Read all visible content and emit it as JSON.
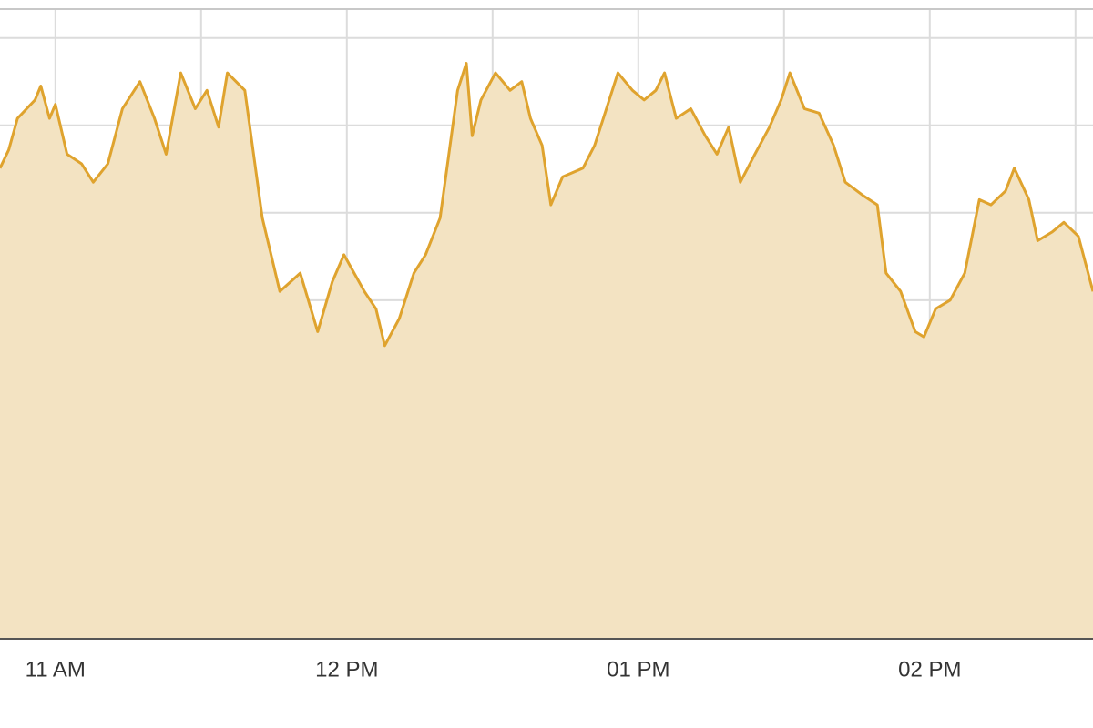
{
  "chart_data": {
    "type": "area",
    "x": [
      10.81,
      10.84,
      10.87,
      10.93,
      10.95,
      10.98,
      11.0,
      11.04,
      11.09,
      11.13,
      11.18,
      11.23,
      11.29,
      11.34,
      11.38,
      11.43,
      11.48,
      11.52,
      11.56,
      11.59,
      11.65,
      11.68,
      11.71,
      11.74,
      11.77,
      11.84,
      11.9,
      11.95,
      11.99,
      12.06,
      12.1,
      12.13,
      12.18,
      12.23,
      12.27,
      12.32,
      12.35,
      12.38,
      12.41,
      12.43,
      12.46,
      12.51,
      12.56,
      12.6,
      12.63,
      12.67,
      12.7,
      12.74,
      12.81,
      12.85,
      12.88,
      12.93,
      12.98,
      13.02,
      13.06,
      13.09,
      13.13,
      13.18,
      13.23,
      13.27,
      13.31,
      13.35,
      13.4,
      13.45,
      13.49,
      13.52,
      13.57,
      13.62,
      13.67,
      13.71,
      13.77,
      13.82,
      13.85,
      13.9,
      13.95,
      13.98,
      14.02,
      14.07,
      14.12,
      14.17,
      14.21,
      14.26,
      14.29,
      14.34,
      14.37,
      14.42,
      14.46,
      14.51,
      14.56
    ],
    "values": [
      5.51,
      5.72,
      6.08,
      6.29,
      6.45,
      6.08,
      6.24,
      5.67,
      5.56,
      5.35,
      5.56,
      6.19,
      6.5,
      6.08,
      5.67,
      6.6,
      6.19,
      6.4,
      5.98,
      6.6,
      6.4,
      5.67,
      4.94,
      4.52,
      4.1,
      4.31,
      3.64,
      4.21,
      4.52,
      4.1,
      3.9,
      3.48,
      3.79,
      4.31,
      4.52,
      4.94,
      5.67,
      6.4,
      6.71,
      5.88,
      6.29,
      6.6,
      6.4,
      6.5,
      6.08,
      5.77,
      5.09,
      5.41,
      5.51,
      5.77,
      6.08,
      6.6,
      6.4,
      6.29,
      6.4,
      6.6,
      6.08,
      6.19,
      5.88,
      5.67,
      5.98,
      5.35,
      5.67,
      5.98,
      6.29,
      6.6,
      6.19,
      6.14,
      5.77,
      5.35,
      5.2,
      5.09,
      4.31,
      4.1,
      3.64,
      3.58,
      3.9,
      4.0,
      4.31,
      5.15,
      5.09,
      5.25,
      5.51,
      5.15,
      4.68,
      4.78,
      4.89,
      4.73,
      4.1
    ],
    "color": "#dfa32e",
    "fill_color": "#f3e3c2",
    "xlim": [
      10.81,
      14.56
    ],
    "xticks": [
      {
        "value": 11,
        "label": "11 AM"
      },
      {
        "value": 12,
        "label": "12 PM"
      },
      {
        "value": 13,
        "label": "01 PM"
      },
      {
        "value": 14,
        "label": "02 PM"
      }
    ],
    "minor_xticks": [
      11.5,
      12.5,
      13.5,
      14.5
    ],
    "ylim": [
      0.125,
      7.33
    ],
    "yticks": [
      1,
      2,
      3,
      4,
      5,
      6,
      7
    ],
    "grid": true
  }
}
